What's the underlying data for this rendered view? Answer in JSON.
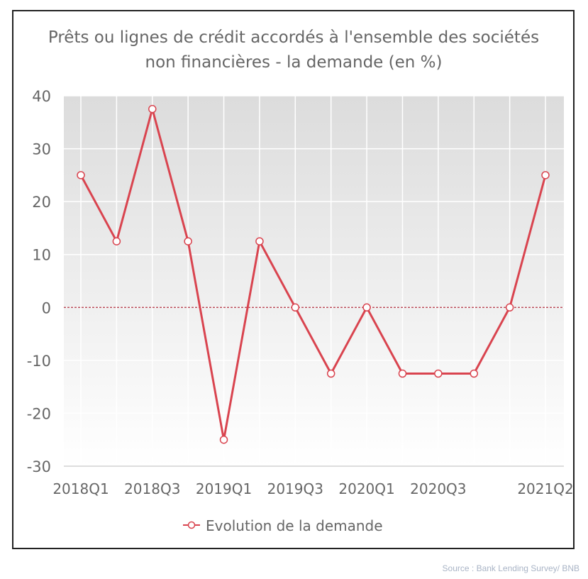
{
  "chart_data": {
    "type": "line",
    "title": [
      "Prêts ou lignes de crédit accordés à l'ensemble des sociétés",
      "non financières - la demande (en %)"
    ],
    "xlabel": "",
    "ylabel": "",
    "x": [
      "2018Q1",
      "2018Q2",
      "2018Q3",
      "2018Q4",
      "2019Q1",
      "2019Q2",
      "2019Q3",
      "2019Q4",
      "2020Q1",
      "2020Q2",
      "2020Q3",
      "2020Q4",
      "2021Q1",
      "2021Q2"
    ],
    "x_tick_labels": [
      "2018Q1",
      "2018Q3",
      "2019Q1",
      "2019Q3",
      "2020Q1",
      "2020Q3",
      "2021Q2"
    ],
    "y_ticks": [
      40,
      30,
      20,
      10,
      0,
      -10,
      -20,
      -30
    ],
    "ylim": [
      -30,
      40
    ],
    "grid": true,
    "series": [
      {
        "name": "Evolution de la demande",
        "color": "#d9444f",
        "values": [
          25,
          12.5,
          37.5,
          12.5,
          -25,
          12.5,
          0,
          -12.5,
          0,
          -12.5,
          -12.5,
          -12.5,
          0,
          25
        ]
      }
    ],
    "legend_position": "bottom-center",
    "reference_line": {
      "y": 0,
      "style": "dashed",
      "color": "#b03040"
    }
  },
  "source": "Source : Bank Lending Survey/ BNB"
}
